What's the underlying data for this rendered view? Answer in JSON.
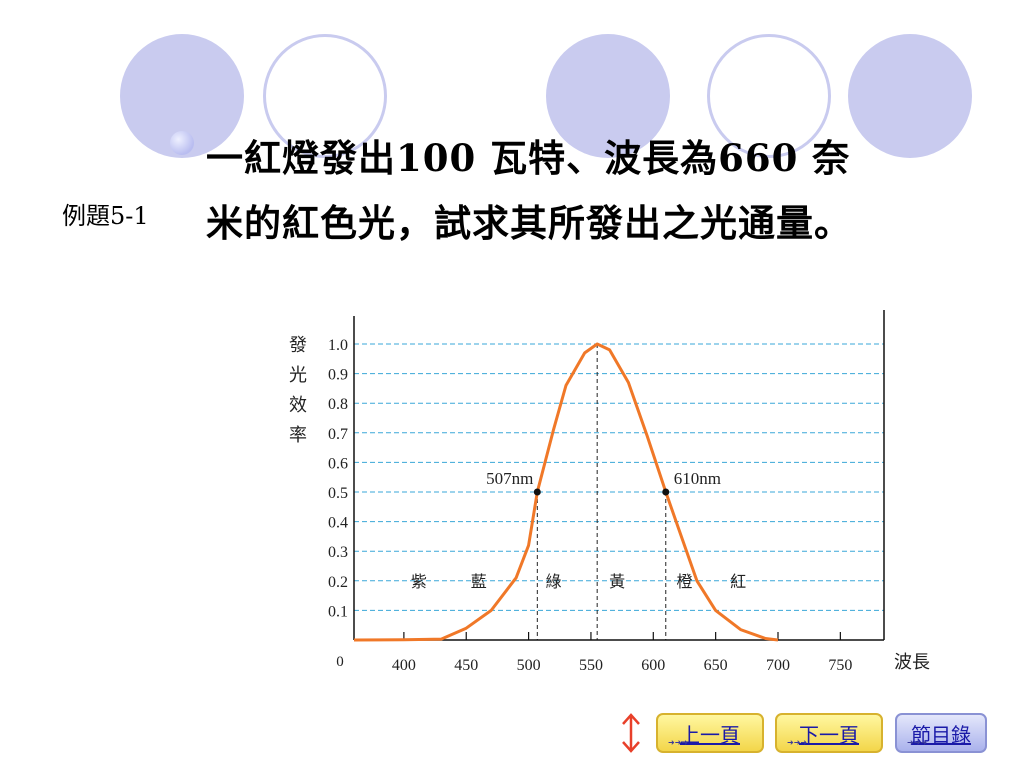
{
  "slide": {
    "title_line1": "一紅燈發出100 瓦特、波長為660 奈",
    "title_line2": "米的紅色光，試求其所發出之光通量。",
    "example_label": "例題5-1"
  },
  "chart_data": {
    "type": "line",
    "ylabel": "發光效率",
    "xlabel": "波長",
    "origin_label": "0",
    "x_ticks": [
      400,
      450,
      500,
      550,
      600,
      650,
      700,
      750
    ],
    "y_ticks": [
      0.1,
      0.2,
      0.3,
      0.4,
      0.5,
      0.6,
      0.7,
      0.8,
      0.9,
      1.0
    ],
    "y_tick_labels": [
      "0.1",
      "0.2",
      "0.3",
      "0.4",
      "0.5",
      "0.6",
      "0.7",
      "0.8",
      "0.9",
      "1.0"
    ],
    "xlim": [
      360,
      785
    ],
    "ylim": [
      0,
      1.0
    ],
    "grid": "horizontal dashed",
    "series": [
      {
        "color": "#f07828",
        "points": [
          [
            360,
            0.0
          ],
          [
            400,
            0.001
          ],
          [
            430,
            0.003
          ],
          [
            450,
            0.04
          ],
          [
            470,
            0.1
          ],
          [
            490,
            0.21
          ],
          [
            500,
            0.32
          ],
          [
            507,
            0.5
          ],
          [
            520,
            0.71
          ],
          [
            530,
            0.86
          ],
          [
            545,
            0.97
          ],
          [
            555,
            1.0
          ],
          [
            565,
            0.98
          ],
          [
            580,
            0.87
          ],
          [
            595,
            0.69
          ],
          [
            610,
            0.5
          ],
          [
            620,
            0.38
          ],
          [
            635,
            0.2
          ],
          [
            650,
            0.1
          ],
          [
            670,
            0.035
          ],
          [
            690,
            0.005
          ],
          [
            700,
            0.0
          ]
        ]
      }
    ],
    "markers": [
      {
        "x": 507,
        "y": 0.5,
        "label": "507nm"
      },
      {
        "x": 610,
        "y": 0.5,
        "label": "610nm"
      }
    ],
    "reference_lines_x": [
      507,
      555,
      610
    ],
    "band_labels": [
      {
        "x": 412,
        "label": "紫"
      },
      {
        "x": 460,
        "label": "藍"
      },
      {
        "x": 520,
        "label": "綠"
      },
      {
        "x": 571,
        "label": "黃"
      },
      {
        "x": 625,
        "label": "橙"
      },
      {
        "x": 668,
        "label": "紅"
      }
    ],
    "band_label_y": 0.2
  },
  "nav": {
    "prev_label": "上一頁",
    "next_label": "下一頁",
    "toc_label": "節目錄",
    "arrows_glyph": "➜➜➜",
    "updown_color": "#e8402a"
  }
}
